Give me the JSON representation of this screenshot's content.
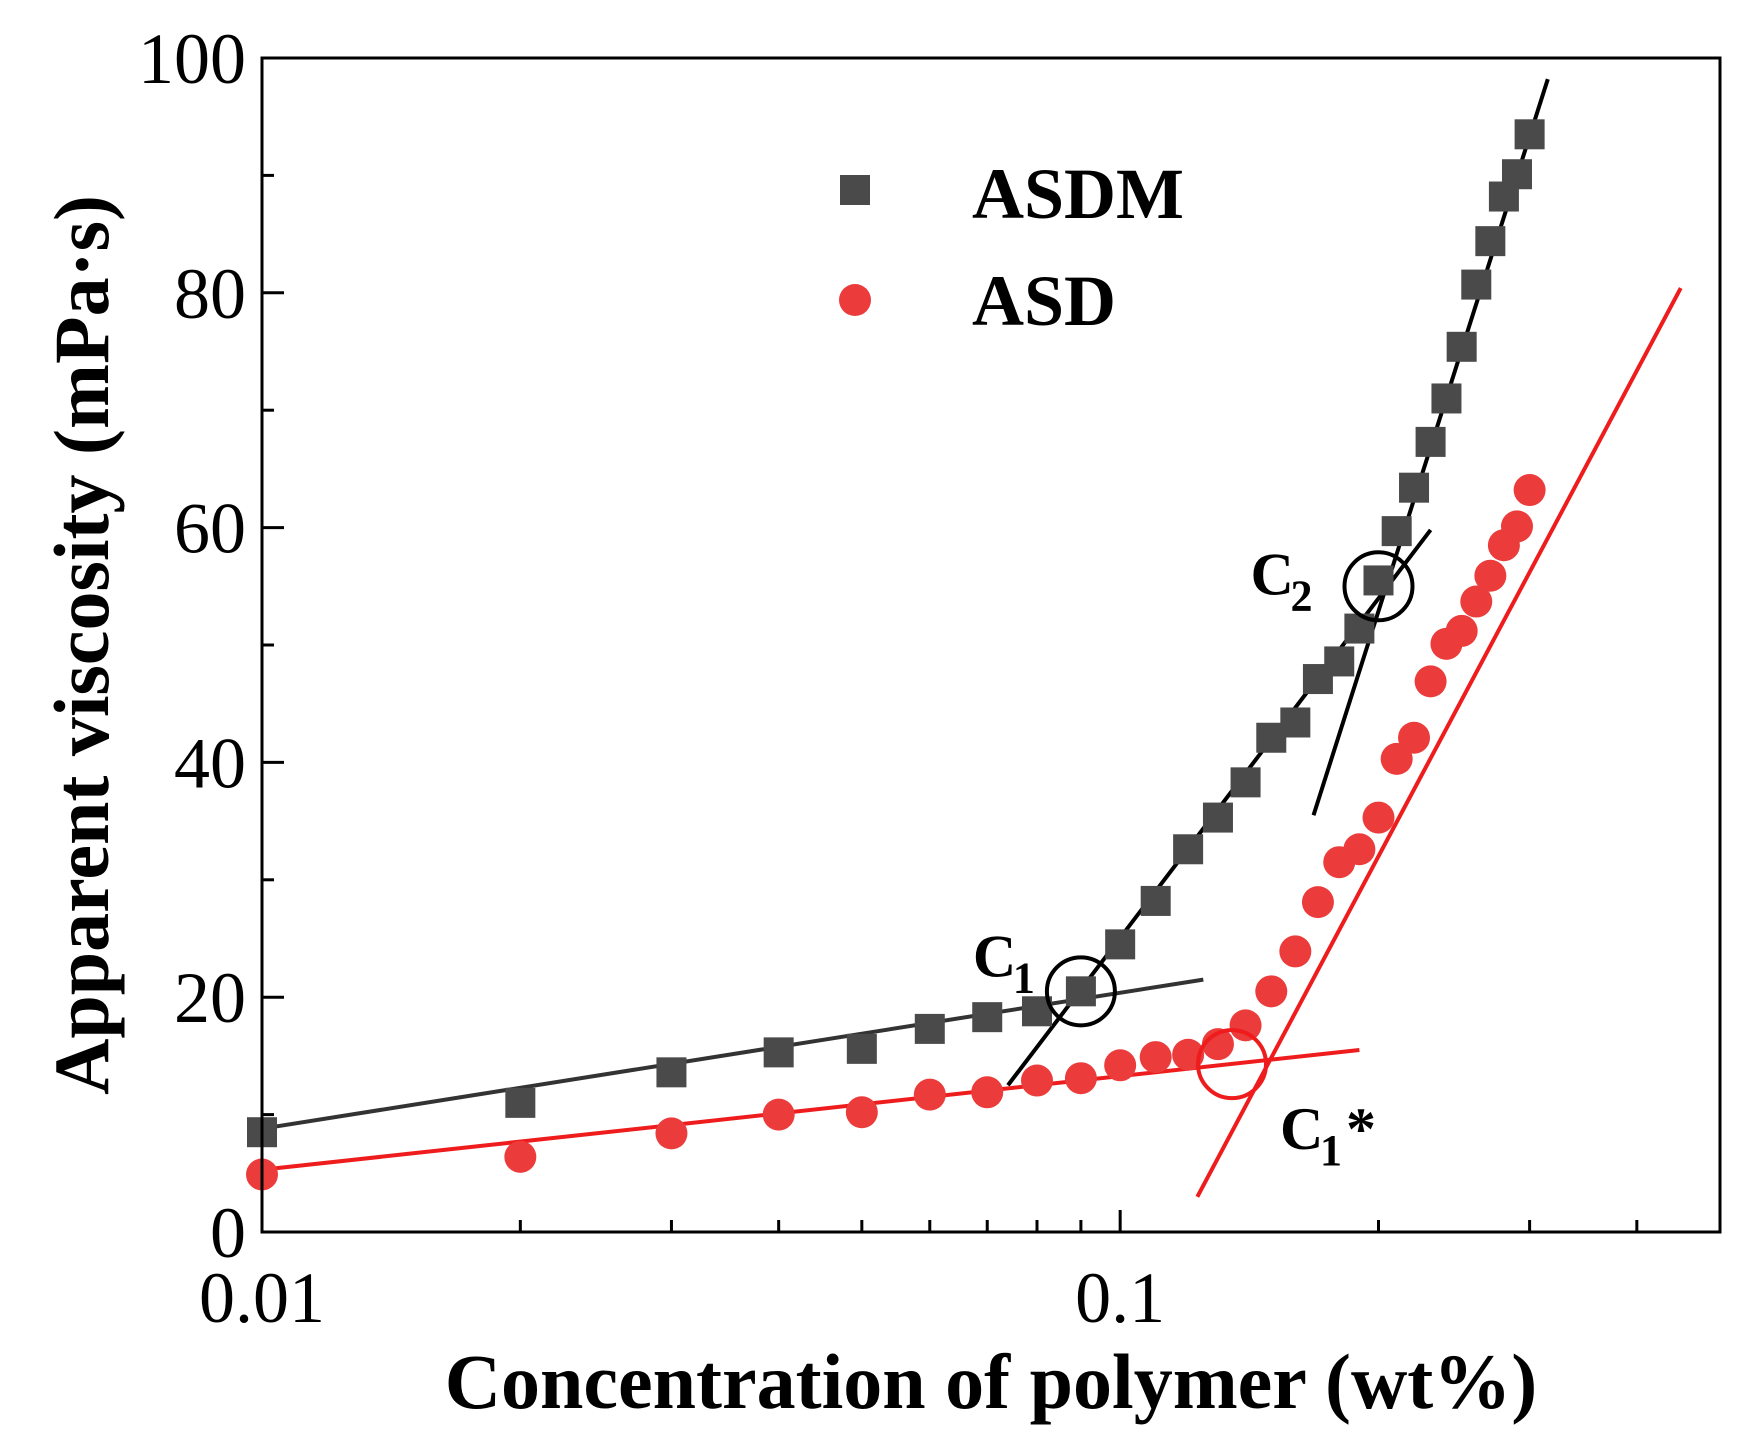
{
  "chart_data": {
    "type": "scatter",
    "xscale": "log",
    "xlim": [
      0.01,
      0.5
    ],
    "ylim": [
      0,
      100
    ],
    "xlabel": "Concentration of polymer (wt%)",
    "ylabel": "Apparent viscosity (mPa·s)",
    "x_ticks": [
      0.01,
      0.1
    ],
    "x_tick_labels": [
      "0.01",
      "0.1"
    ],
    "y_ticks": [
      0,
      20,
      40,
      60,
      80,
      100
    ],
    "y_tick_labels": [
      "0",
      "20",
      "40",
      "60",
      "80",
      "100"
    ],
    "legend_position": "top-center",
    "series": [
      {
        "name": "ASDM",
        "marker": "square",
        "color": "#4a4a4a",
        "x": [
          0.01,
          0.02,
          0.03,
          0.04,
          0.05,
          0.06,
          0.07,
          0.08,
          0.09,
          0.1,
          0.11,
          0.12,
          0.13,
          0.14,
          0.15,
          0.16,
          0.17,
          0.18,
          0.19,
          0.2,
          0.21,
          0.22,
          0.23,
          0.24,
          0.25,
          0.26,
          0.27,
          0.28,
          0.29,
          0.3
        ],
        "y": [
          8.5,
          11.0,
          13.6,
          15.3,
          15.6,
          17.3,
          18.3,
          18.8,
          20.5,
          24.5,
          28.2,
          32.6,
          35.3,
          38.3,
          42.1,
          43.4,
          47.1,
          48.6,
          51.4,
          55.5,
          59.7,
          63.4,
          67.3,
          71.0,
          75.4,
          80.7,
          84.4,
          88.2,
          90.1,
          93.5
        ]
      },
      {
        "name": "ASD",
        "marker": "circle",
        "color": "#ec3b3b",
        "x": [
          0.01,
          0.02,
          0.03,
          0.04,
          0.05,
          0.06,
          0.07,
          0.08,
          0.09,
          0.1,
          0.11,
          0.12,
          0.13,
          0.14,
          0.15,
          0.16,
          0.17,
          0.18,
          0.19,
          0.2,
          0.21,
          0.22,
          0.23,
          0.24,
          0.25,
          0.26,
          0.27,
          0.28,
          0.29,
          0.3
        ],
        "y": [
          4.9,
          6.4,
          8.4,
          10.0,
          10.2,
          11.7,
          11.9,
          12.9,
          13.1,
          14.2,
          14.9,
          15.1,
          16.0,
          17.6,
          20.5,
          23.9,
          28.1,
          31.5,
          32.6,
          35.3,
          40.3,
          42.1,
          46.9,
          50.1,
          51.2,
          53.7,
          55.9,
          58.5,
          60.1,
          63.2
        ]
      }
    ],
    "fit_lines": [
      {
        "name": "ASDM low",
        "color": "#333333",
        "x": [
          0.01,
          0.125
        ],
        "y": [
          8.8,
          21.5
        ]
      },
      {
        "name": "ASDM mid",
        "color": "#000000",
        "x": [
          0.074,
          0.23
        ],
        "y": [
          12.5,
          59.8
        ]
      },
      {
        "name": "ASDM high",
        "color": "#000000",
        "x": [
          0.168,
          0.315
        ],
        "y": [
          35.5,
          98.2
        ]
      },
      {
        "name": "ASD low",
        "color": "#ee1c1c",
        "x": [
          0.01,
          0.19
        ],
        "y": [
          5.3,
          15.5
        ]
      },
      {
        "name": "ASD high",
        "color": "#ee1c1c",
        "x": [
          0.123,
          0.45
        ],
        "y": [
          3.0,
          80.4
        ]
      }
    ],
    "annotations": [
      {
        "label": "C",
        "sub": "1",
        "suffix": "",
        "x": 0.09,
        "y": 20.5,
        "color": "#000000"
      },
      {
        "label": "C",
        "sub": "2",
        "suffix": "",
        "x": 0.2,
        "y": 55.0,
        "color": "#000000"
      },
      {
        "label": "C",
        "sub": "1",
        "suffix": "*",
        "x": 0.135,
        "y": 14.3,
        "color": "#ee1c1c"
      }
    ]
  }
}
